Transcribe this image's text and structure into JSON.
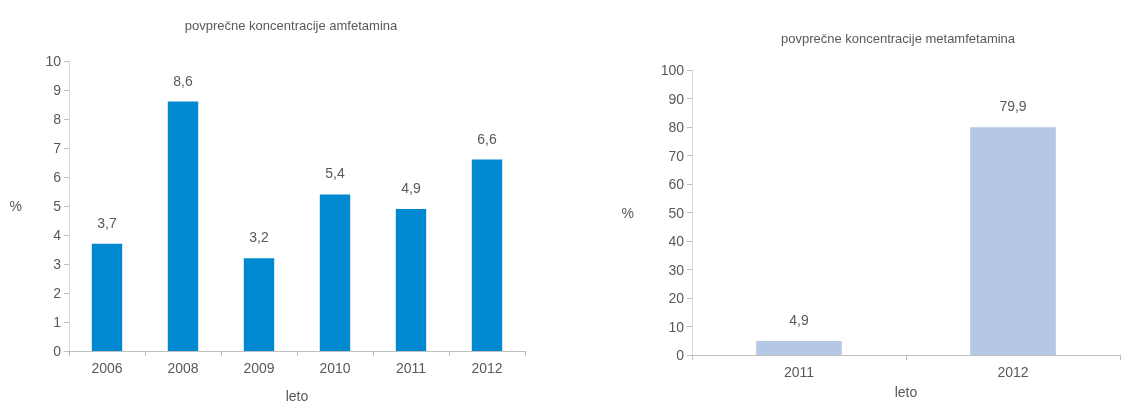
{
  "chart_data": [
    {
      "type": "bar",
      "title": "povprečne koncentracije amfetamina",
      "xlabel": "leto",
      "ylabel": "%",
      "categories": [
        "2006",
        "2008",
        "2009",
        "2010",
        "2011",
        "2012"
      ],
      "values": [
        3.7,
        8.6,
        3.2,
        5.4,
        4.9,
        6.6
      ],
      "color": "#0088d0",
      "value_labels": [
        "3,7",
        "8,6",
        "3,2",
        "5,4",
        "4,9",
        "6,6"
      ],
      "ylim": [
        0,
        10
      ],
      "yticks": [
        0,
        1,
        2,
        3,
        4,
        5,
        6,
        7,
        8,
        9,
        10
      ],
      "grid": false
    },
    {
      "type": "bar",
      "title": "povprečne koncentracije metamfetamina",
      "xlabel": "leto",
      "ylabel": "%",
      "categories": [
        "2011",
        "2012"
      ],
      "values": [
        4.9,
        79.9
      ],
      "color": "#b4c7e6",
      "value_labels": [
        "4,9",
        "79,9"
      ],
      "ylim": [
        0,
        100
      ],
      "yticks": [
        0,
        10,
        20,
        30,
        40,
        50,
        60,
        70,
        80,
        90,
        100
      ],
      "grid": false
    }
  ]
}
